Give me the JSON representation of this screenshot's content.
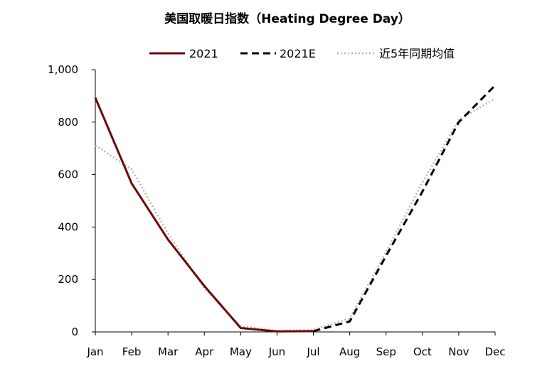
{
  "chart_data": {
    "type": "line",
    "title": "美国取暖日指数（Heating  Degree Day）",
    "xlabel": "",
    "ylabel": "",
    "ylim": [
      0,
      1000
    ],
    "yticks": [
      "0",
      "200",
      "400",
      "600",
      "800",
      "1,000"
    ],
    "categories": [
      "Jan",
      "Feb",
      "Mar",
      "Apr",
      "May",
      "Jun",
      "Jul",
      "Aug",
      "Sep",
      "Oct",
      "Nov",
      "Dec"
    ],
    "legend_position": "top",
    "grid": false,
    "series": [
      {
        "name": "2021",
        "color": "#6b0a0a",
        "style": "solid",
        "values": [
          893,
          566,
          352,
          175,
          15,
          2,
          3,
          null,
          null,
          null,
          null,
          null
        ]
      },
      {
        "name": "2021E",
        "color": "#000000",
        "style": "dashed",
        "values": [
          null,
          null,
          null,
          null,
          null,
          null,
          3,
          40,
          290,
          535,
          800,
          940
        ]
      },
      {
        "name": "近5年同期均值",
        "color": "#bdb6ae",
        "style": "dotted",
        "values": [
          712,
          620,
          375,
          165,
          22,
          5,
          8,
          52,
          305,
          570,
          808,
          890
        ]
      }
    ]
  }
}
